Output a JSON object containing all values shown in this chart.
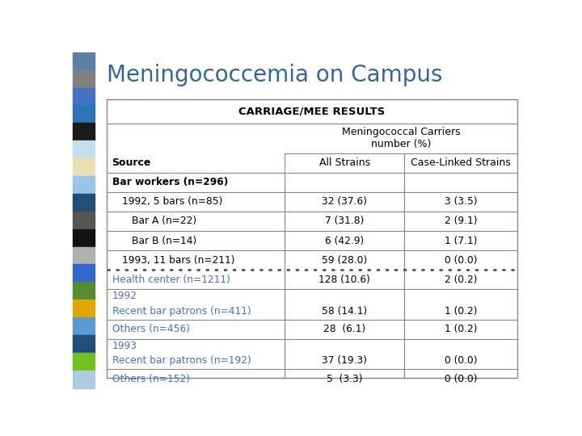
{
  "title": "Meningococcemia on Campus",
  "title_color": "#336699",
  "title_fontsize": 20,
  "table_title": "CARRIAGE/MEE RESULTS",
  "col_header1": "Meningococcal Carriers\nnumber (%)",
  "col_sub1": "All Strains",
  "col_sub2": "Case-Linked Strains",
  "col_source": "Source",
  "rows": [
    {
      "source": "Bar workers (n=296)",
      "all": "",
      "case": "",
      "color": "black",
      "bold": true,
      "indent": 0,
      "double": false
    },
    {
      "source": "1992, 5 bars (n=85)",
      "all": "32 (37.6)",
      "case": "3 (3.5)",
      "color": "black",
      "bold": false,
      "indent": 1,
      "double": false
    },
    {
      "source": "Bar A (n=22)",
      "all": "7 (31.8)",
      "case": "2 (9.1)",
      "color": "black",
      "bold": false,
      "indent": 2,
      "double": false
    },
    {
      "source": "Bar B (n=14)",
      "all": "6 (42.9)",
      "case": "1 (7.1)",
      "color": "black",
      "bold": false,
      "indent": 2,
      "double": false
    },
    {
      "source": "1993, 11 bars (n=211)",
      "all": "59 (28.0)",
      "case": "0 (0.0)",
      "color": "black",
      "bold": false,
      "indent": 1,
      "double": false
    },
    {
      "source": "Health center (n=1211)",
      "all": "128 (10.6)",
      "case": "2 (0.2)",
      "color": "#4472C4",
      "bold": false,
      "indent": 0,
      "double": false
    },
    {
      "source": "1992\nRecent bar patrons (n=411)",
      "all": "58 (14.1)",
      "case": "1 (0.2)",
      "color": "#4472C4",
      "bold": false,
      "indent": 0,
      "double": true,
      "line2_color": "#4472C4"
    },
    {
      "source": "Others (n=456)",
      "all": "28  (6.1)",
      "case": "1 (0.2)",
      "color": "#4472C4",
      "bold": false,
      "indent": 0,
      "double": false
    },
    {
      "source": "1993\nRecent bar patrons (n=192)",
      "all": "37 (19.3)",
      "case": "0 (0.0)",
      "color": "#4472C4",
      "bold": false,
      "indent": 0,
      "double": true,
      "line2_color": "#4472C4"
    },
    {
      "source": "Others (n=152)",
      "all": "5  (3.3)",
      "case": "0 (0.0)",
      "color": "#4472C4",
      "bold": false,
      "indent": 0,
      "double": false
    }
  ],
  "dotted_after_row": 4,
  "bg_color": "#ffffff",
  "sidebar_colors": [
    "#5b7fa6",
    "#808080",
    "#4472c4",
    "#2e75b6",
    "#1a1a1a",
    "#c8dff0",
    "#e8e0b0",
    "#9dc3e6",
    "#1f4e79",
    "#555555",
    "#111111",
    "#b0b0b0",
    "#3366cc",
    "#5a8a30",
    "#e0a800",
    "#5b9bd5",
    "#1f4e79",
    "#70c020",
    "#b0c8e0"
  ],
  "table_border_color": "#888888",
  "dot_color": "#555555"
}
